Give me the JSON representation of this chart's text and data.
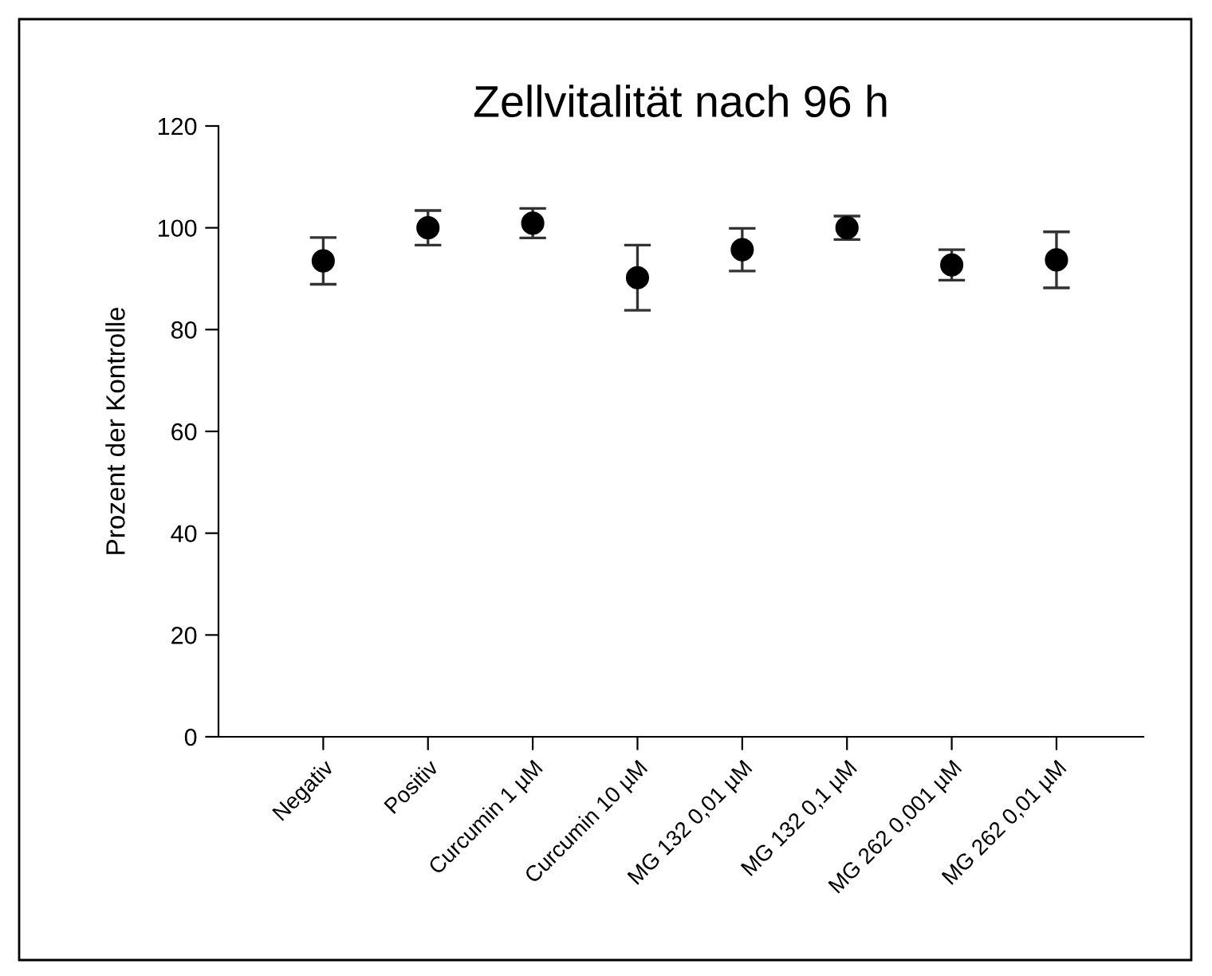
{
  "chart_data": {
    "type": "scatter",
    "title": "Zellvitalität nach 96 h",
    "ylabel": "Prozent der Kontrolle",
    "categories": [
      "Negativ",
      "Positiv",
      "Curcumin 1 µM",
      "Curcumin 10 µM",
      "MG 132 0,01 µM",
      "MG 132 0,1 µM",
      "MG 262 0,001 µM",
      "MG 262 0,01 µM"
    ],
    "values": [
      93.5,
      100.0,
      100.9,
      90.2,
      95.7,
      100.0,
      92.7,
      93.7
    ],
    "errors": [
      4.6,
      3.4,
      2.9,
      6.4,
      4.2,
      2.3,
      3.0,
      5.5
    ],
    "color": "#000000",
    "marker": "circle",
    "ylim": [
      0,
      120
    ],
    "yticks": [
      0,
      20,
      40,
      60,
      80,
      100,
      120
    ],
    "grid": false,
    "legend": false
  }
}
